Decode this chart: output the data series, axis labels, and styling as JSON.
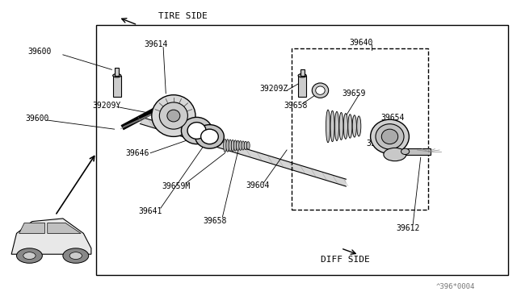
{
  "bg_color": "#ffffff",
  "border_color": "#000000",
  "line_color": "#000000",
  "text_color": "#000000",
  "title": "",
  "watermark": "^396*0004",
  "tire_side_label": "TIRE SIDE",
  "diff_side_label": "DIFF SIDE",
  "figure_width": 6.4,
  "figure_height": 3.72,
  "dpi": 100
}
